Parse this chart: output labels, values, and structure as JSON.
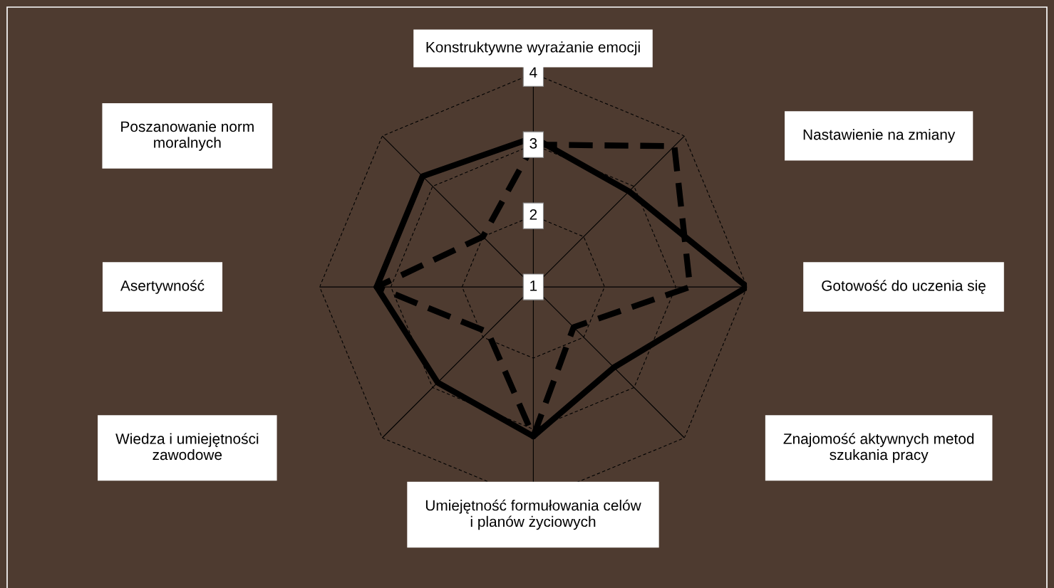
{
  "chart_data": {
    "type": "radar",
    "categories": [
      "Konstruktywne wyrażanie emocji",
      "Nastawienie na zmiany",
      "Gotowość do uczenia się",
      "Znajomość aktywnych metod\nszukania pracy",
      "Umiejętność formułowania celów\ni planów życiowych",
      "Wiedza i umiejętności\nzawodowe",
      "Asertywność",
      "Poszanowanie norm\nmoralnych"
    ],
    "series": [
      {
        "color": "#000000",
        "line_style": "solid",
        "values": [
          3.1,
          2.9,
          4,
          2.6,
          3.1,
          2.9,
          3.2,
          3.2
        ]
      },
      {
        "color": "#000000",
        "line_style": "dashed",
        "values": [
          3.0,
          3.8,
          3.2,
          1.8,
          3.1,
          1.9,
          3.2,
          2.0
        ]
      }
    ],
    "ylim": [
      1,
      4
    ],
    "yticks": [
      1,
      2,
      3,
      4
    ],
    "grid": true,
    "marker": "none"
  }
}
